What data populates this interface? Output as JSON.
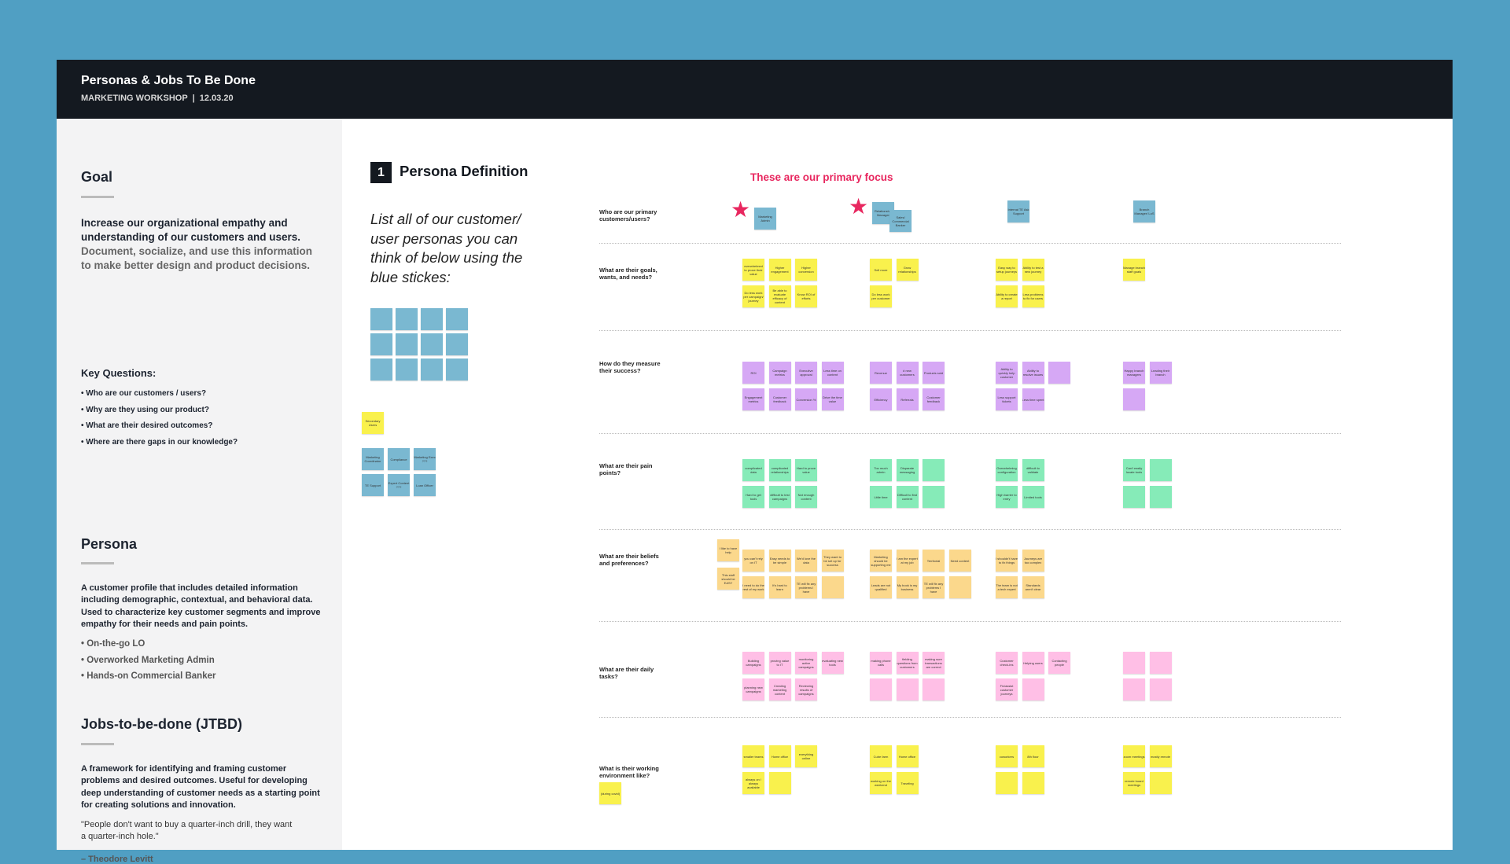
{
  "header": {
    "title": "Personas & Jobs To Be Done",
    "subtitle": "MARKETING WORKSHOP  |  12.03.20"
  },
  "sidebar": {
    "goal_heading": "Goal",
    "goal_bold": "Increase our organizational empathy and understanding of our customers and users.",
    "goal_text": "Document, socialize, and use this information to make better design and product decisions.",
    "key_questions_title": "Key Questions:",
    "key_questions": [
      "• Who are our customers / users?",
      "• Why are they using our product?",
      "• What are their desired outcomes?",
      "• Where are there gaps in our knowledge?"
    ],
    "persona_heading": "Persona",
    "persona_text": "A customer profile that includes detailed information including demographic, contextual, and behavioral data.  Used to characterize key customer segments and improve empathy for their needs and pain points.",
    "personas": [
      "• On-the-go LO",
      "• Overworked Marketing Admin",
      "• Hands-on Commercial Banker"
    ],
    "jtbd_heading": "Jobs-to-be-done (JTBD)",
    "jtbd_text": "A framework for identifying and framing customer problems and desired outcomes.  Useful for developing deep understanding of customer needs as a starting point for creating solutions and innovation.",
    "quote": "\"People don't want to buy a quarter-inch drill, they want a quarter-inch hole.\"",
    "attribution": "– Theodore Levitt"
  },
  "section": {
    "number": "1",
    "title": "Persona Definition",
    "instruction": "List all of our customer/ user personas you can think of below using the blue stickes:",
    "secondary_label": "Secondary Users",
    "secondary": [
      "Marketing Coordinator",
      "Compliance",
      "Marketing Exec ???",
      "TE Support",
      "Expert Content ???",
      "Loan Officer"
    ]
  },
  "focus_note": "These are our primary focus",
  "rows": [
    {
      "question": "Who are our primary customers/users?",
      "color": "#7ab8d1",
      "groups": [
        [
          [
            "Marketing Admin"
          ]
        ],
        [
          [
            "Relationship Manager",
            "Sales/ Commercial Banker"
          ]
        ],
        [
          [
            "Internal TE Ask Support"
          ]
        ],
        [
          [
            "Branch Manager/ LoS"
          ]
        ]
      ]
    },
    {
      "question": "What are their goals, wants, and needs?",
      "color": "#f9f14d",
      "groups": [
        [
          [
            "overwhelmed to prove their value",
            "Higher engagement",
            "Higher conversion"
          ],
          [
            "Do less work per campaign/ journey",
            "Be able to evaluate efficacy of content",
            "Know ROI of efforts"
          ]
        ],
        [
          [
            "Sell more",
            "Grow relationships"
          ],
          [
            "Do less work per customer"
          ]
        ],
        [
          [
            "Easy way to setup journeys",
            "Ability to test a new journey"
          ],
          [
            "Ability to create a report",
            "Less problems to fix for users"
          ]
        ],
        [
          [
            "Manage branch staff goals"
          ]
        ]
      ]
    },
    {
      "question": "How do they measure their success?",
      "color": "#d6a8f5",
      "groups": [
        [
          [
            "ROI",
            "Campaign metrics",
            "Executive approval",
            "Less time on content"
          ],
          [
            "Engagement metrics",
            "Customer feedback",
            "Conversion %",
            "Drive the time value"
          ]
        ],
        [
          [
            "Revenue",
            "# new customers",
            "Products sold"
          ],
          [
            "Efficiency",
            "Referrals",
            "Customer feedback"
          ]
        ],
        [
          [
            "Ability to quickly help customer",
            "Ability to resolve issues",
            null
          ],
          [
            "Less support tickets",
            "Less time spent"
          ]
        ],
        [
          [
            "Happy branch managers",
            "Leading their branch"
          ],
          [
            null
          ]
        ]
      ]
    },
    {
      "question": "What are their pain points?",
      "color": "#86ebb8",
      "groups": [
        [
          [
            "complicated data",
            "complicated relationships",
            "Hard to prove value"
          ],
          [
            "Hard to get tools",
            "difficult to test campaigns",
            "Not enough content"
          ]
        ],
        [
          [
            "Too much admin",
            "Disparate messaging",
            null
          ],
          [
            "Little time",
            "Difficult to find content",
            null
          ]
        ],
        [
          [
            "Overwhelming configuration",
            "difficult to validate"
          ],
          [
            "High barrier to entry",
            "Limited tools"
          ]
        ],
        [
          [
            "Can't easily locate tools",
            null
          ],
          [
            null,
            null
          ]
        ]
      ]
    },
    {
      "question": "What are their beliefs and preferences?",
      "color": "#fbd88c",
      "lead": [
        "I like to have help",
        "This stuff should be EASY"
      ],
      "groups": [
        [
          [
            "you can't rely on IT",
            "Easy needs to be simple",
            "We'd love the data",
            "They want to be set up for success"
          ],
          [
            "I need to do the rest of my work",
            "It's hard to learn",
            "TE will fix any problems I have",
            null
          ]
        ],
        [
          [
            "Marketing should be supporting me",
            "I am the expert at my job",
            "Territorial",
            "Need content"
          ],
          [
            "Leads are not qualified",
            "My book is my business",
            "TE will fix any problems I have",
            null
          ]
        ],
        [
          [
            "I shouldn't have to fix things",
            "Journeys are too complex"
          ],
          [
            "The team is not a tech expert",
            "Standards aren't clear"
          ]
        ]
      ]
    },
    {
      "question": "What are their daily tasks?",
      "color": "#ffbfe6",
      "groups": [
        [
          [
            "Building campaigns",
            "proving value to IT",
            "monitoring active campaigns",
            "evaluating new tools"
          ],
          [
            "planning new campaigns",
            "Creating marketing content",
            "Reviewing results of campaigns"
          ]
        ],
        [
          [
            "making phone calls",
            "fielding questions from customers",
            "making sure transactions are correct"
          ],
          [
            null,
            null,
            null
          ]
        ],
        [
          [
            "Customer check-ins",
            "Helping users",
            "Contacting people"
          ],
          [
            "Fix/assist customer journeys",
            null
          ]
        ],
        [
          [
            null,
            null
          ],
          [
            null,
            null
          ]
        ]
      ]
    },
    {
      "question": "What is their working environment like?",
      "color": "#f9f14d",
      "lead": [
        "(during covid)"
      ],
      "groups": [
        [
          [
            "smaller teams",
            "Home office",
            "everything online"
          ],
          [
            "always on / always available",
            null
          ]
        ],
        [
          [
            "Cube farm",
            "Home office"
          ],
          [
            "working on the weekend",
            "Traveling"
          ]
        ],
        [
          [
            "coworkers",
            "8th floor"
          ],
          [
            null,
            null
          ]
        ],
        [
          [
            "zoom meetings",
            "mostly remote"
          ],
          [
            "remote board meetings",
            null
          ]
        ]
      ]
    }
  ]
}
